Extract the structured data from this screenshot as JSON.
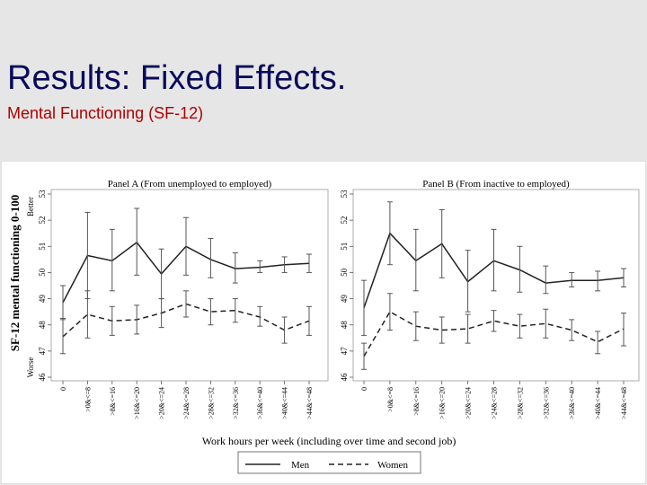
{
  "slide": {
    "title": "Results: Fixed Effects.",
    "subtitle": "Mental Functioning (SF-12)"
  },
  "figure": {
    "ylabel": "SF-12 mental functioning 0-100",
    "better_label": "Better",
    "worse_label": "Worse",
    "xlabel": "Work hours per week (including over time and second job)",
    "legend": [
      "Men",
      "Women"
    ]
  },
  "chart_data": [
    {
      "type": "line",
      "title": "Panel A (From unemployed to employed)",
      "xlabel": "Work hours per week (including over time and second job)",
      "ylabel": "SF-12 mental functioning 0-100",
      "categories": [
        "0",
        ">0&<=8",
        ">8&<=16",
        ">16&<=20",
        ">20&<=24",
        ">24&<=28",
        ">28&<=32",
        ">32&<=36",
        ">36&<=40",
        ">40&<=44",
        ">44&<=48"
      ],
      "ylim": [
        46,
        53
      ],
      "yticks": [
        "46",
        "47",
        "48",
        "49",
        "50",
        "51",
        "52",
        "53"
      ],
      "legend_position": "bottom",
      "series": [
        {
          "name": "Men",
          "style": "solid",
          "values": [
            48.85,
            50.65,
            50.45,
            51.15,
            49.95,
            51.0,
            50.5,
            50.15,
            50.2,
            50.3,
            50.35
          ],
          "ci_low": [
            48.2,
            49.0,
            49.3,
            49.9,
            49.0,
            49.9,
            49.8,
            49.6,
            50.0,
            50.0,
            50.0
          ],
          "ci_high": [
            49.5,
            52.3,
            51.65,
            52.45,
            50.9,
            52.1,
            51.3,
            50.75,
            50.45,
            50.6,
            50.7
          ]
        },
        {
          "name": "Women",
          "style": "dashed",
          "values": [
            47.55,
            48.4,
            48.15,
            48.2,
            48.45,
            48.8,
            48.5,
            48.55,
            48.3,
            47.8,
            48.15
          ],
          "ci_low": [
            46.9,
            47.5,
            47.6,
            47.65,
            47.9,
            48.3,
            48.0,
            48.1,
            47.95,
            47.3,
            47.6
          ],
          "ci_high": [
            48.25,
            49.3,
            48.7,
            48.75,
            49.0,
            49.3,
            49.0,
            49.0,
            48.7,
            48.3,
            48.7
          ]
        }
      ]
    },
    {
      "type": "line",
      "title": "Panel B (From inactive to employed)",
      "xlabel": "Work hours per week (including over time and second job)",
      "categories": [
        "0",
        ">0&<=8",
        ">8&<=16",
        ">16&<=20",
        ">20&<=24",
        ">24&<=28",
        ">28&<=32",
        ">32&<=36",
        ">36&<=40",
        ">40&<=44",
        ">44&<=48"
      ],
      "ylim": [
        46,
        53
      ],
      "yticks": [
        "46",
        "47",
        "48",
        "49",
        "50",
        "51",
        "52",
        "53"
      ],
      "legend_position": "bottom",
      "series": [
        {
          "name": "Men",
          "style": "solid",
          "values": [
            48.65,
            51.5,
            50.45,
            51.1,
            49.65,
            50.45,
            50.1,
            49.6,
            49.7,
            49.7,
            49.8
          ],
          "ci_low": [
            47.6,
            50.3,
            49.3,
            49.8,
            48.5,
            49.3,
            49.25,
            49.2,
            49.45,
            49.3,
            49.45
          ],
          "ci_high": [
            49.7,
            52.7,
            51.65,
            52.4,
            50.85,
            51.65,
            51.0,
            50.25,
            50.0,
            50.05,
            50.15
          ]
        },
        {
          "name": "Women",
          "style": "dashed",
          "values": [
            46.8,
            48.5,
            47.95,
            47.8,
            47.85,
            48.15,
            47.95,
            48.05,
            47.8,
            47.35,
            47.85
          ],
          "ci_low": [
            46.3,
            47.8,
            47.4,
            47.3,
            47.3,
            47.75,
            47.5,
            47.5,
            47.4,
            46.9,
            47.2
          ],
          "ci_high": [
            47.3,
            49.2,
            48.5,
            48.3,
            48.4,
            48.55,
            48.4,
            48.6,
            48.2,
            47.75,
            48.45
          ]
        }
      ]
    }
  ]
}
